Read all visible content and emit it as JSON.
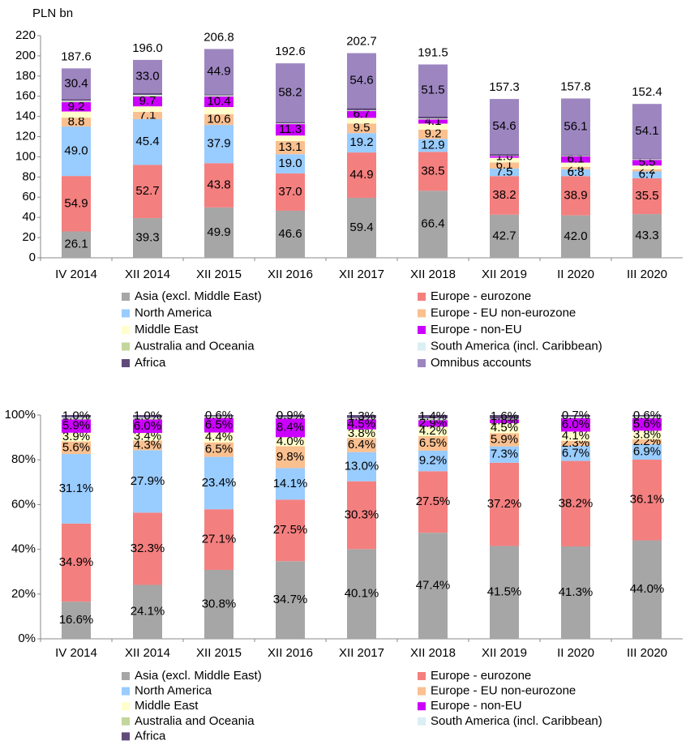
{
  "chart_data": [
    {
      "type": "bar",
      "stacked": true,
      "y_label": "PLN bn",
      "categories": [
        "IV 2014",
        "XII 2014",
        "XII 2015",
        "XII 2016",
        "XII 2017",
        "XII 2018",
        "XII 2019",
        "II 2020",
        "III 2020"
      ],
      "ylim": [
        0,
        220
      ],
      "yticks": [
        0,
        20,
        40,
        60,
        80,
        100,
        120,
        140,
        160,
        180,
        200,
        220
      ],
      "grid": false,
      "totals": [
        187.6,
        196.0,
        206.8,
        192.6,
        202.7,
        191.5,
        157.3,
        157.8,
        152.4
      ],
      "totals_labels": [
        "187.6",
        "196.0",
        "206.8",
        "192.6",
        "202.7",
        "191.5",
        "157.3",
        "157.8",
        "152.4"
      ],
      "series": [
        {
          "name": "Asia (excl. Middle East)",
          "color": "#a6a6a6",
          "labels": true,
          "values": [
            26.1,
            39.3,
            49.9,
            46.6,
            59.4,
            66.4,
            42.7,
            42.0,
            43.3
          ],
          "value_labels": [
            "26.1",
            "39.3",
            "49.9",
            "46.6",
            "59.4",
            "66.4",
            "42.7",
            "42.0",
            "43.3"
          ]
        },
        {
          "name": "Europe - eurozone",
          "color": "#f47f7f",
          "labels": true,
          "values": [
            54.9,
            52.7,
            43.8,
            37.0,
            44.9,
            38.5,
            38.2,
            38.9,
            35.5
          ],
          "value_labels": [
            "54.9",
            "52.7",
            "43.8",
            "37.0",
            "44.9",
            "38.5",
            "38.2",
            "38.9",
            "35.5"
          ]
        },
        {
          "name": "North America",
          "color": "#99ccff",
          "labels": true,
          "values": [
            49.0,
            45.4,
            37.9,
            19.0,
            19.2,
            12.9,
            7.5,
            6.8,
            6.7
          ],
          "value_labels": [
            "49.0",
            "45.4",
            "37.9",
            "19.0",
            "19.2",
            "12.9",
            "7.5",
            "6.8",
            "6.7"
          ]
        },
        {
          "name": "Europe - EU non-eurozone",
          "color": "#fac090",
          "labels": true,
          "values": [
            8.8,
            7.1,
            10.6,
            13.1,
            9.5,
            9.2,
            6.1,
            2.4,
            2.2
          ]
        },
        {
          "name": "Middle East",
          "color": "#ffffcc",
          "labels": false,
          "values": [
            6.1,
            5.5,
            7.1,
            5.4,
            5.6,
            5.9,
            4.6,
            4.2,
            3.7
          ]
        },
        {
          "name": "Europe - non-EU",
          "color": "#cc00ff",
          "labels": true,
          "values": [
            9.2,
            9.7,
            10.4,
            11.3,
            6.7,
            4.1,
            1.6,
            6.1,
            5.5
          ]
        },
        {
          "name": "Australia and Oceania",
          "color": "#c3d69b",
          "labels": false,
          "values": [
            0.8,
            0.9,
            0.6,
            0.4,
            0.5,
            0.5,
            0.2,
            0.3,
            0.4
          ]
        },
        {
          "name": "South America (incl. Caribbean)",
          "color": "#dbeef4",
          "labels": false,
          "values": [
            0.7,
            0.8,
            0.6,
            0.4,
            0.4,
            0.5,
            0.2,
            0.3,
            0.4
          ]
        },
        {
          "name": "Africa",
          "color": "#604a7b",
          "labels": false,
          "values": [
            1.6,
            1.6,
            1.0,
            1.2,
            1.9,
            2.0,
            1.6,
            0.7,
            0.6
          ]
        },
        {
          "name": "Omnibus accounts",
          "color": "#9d86c0",
          "labels": true,
          "values": [
            30.4,
            33.0,
            44.9,
            58.2,
            54.6,
            51.5,
            54.6,
            56.1,
            54.1
          ],
          "value_labels": [
            "30.4",
            "33.0",
            "44.9",
            "58.2",
            "54.6",
            "51.5",
            "54.6",
            "56.1",
            "54.1"
          ]
        }
      ]
    },
    {
      "type": "bar",
      "stacked": true,
      "categories": [
        "IV 2014",
        "XII 2014",
        "XII 2015",
        "XII 2016",
        "XII 2017",
        "XII 2018",
        "XII 2019",
        "II 2020",
        "III 2020"
      ],
      "ylim": [
        0,
        100
      ],
      "grid": false,
      "yticks": [
        {
          "value": 0,
          "label": "0%"
        },
        {
          "value": 20,
          "label": "20%"
        },
        {
          "value": 40,
          "label": "40%"
        },
        {
          "value": 60,
          "label": "60%"
        },
        {
          "value": 80,
          "label": "80%"
        },
        {
          "value": 100,
          "label": "100%"
        }
      ],
      "series": [
        {
          "name": "Asia (excl. Middle East)",
          "color": "#a6a6a6",
          "labels": true,
          "values": [
            16.6,
            24.1,
            30.8,
            34.7,
            40.1,
            47.4,
            41.5,
            41.3,
            44.0
          ],
          "value_labels": [
            "16.6%",
            "24.1%",
            "30.8%",
            "34.7%",
            "40.1%",
            "47.4%",
            "41.5%",
            "41.3%",
            "44.0%"
          ]
        },
        {
          "name": "Europe - eurozone",
          "color": "#f47f7f",
          "labels": true,
          "values": [
            34.9,
            32.3,
            27.1,
            27.5,
            30.3,
            27.5,
            37.2,
            38.2,
            36.1
          ],
          "value_labels": [
            "34.9%",
            "32.3%",
            "27.1%",
            "27.5%",
            "30.3%",
            "27.5%",
            "37.2%",
            "38.2%",
            "36.1%"
          ]
        },
        {
          "name": "North America",
          "color": "#99ccff",
          "labels": true,
          "values": [
            31.1,
            27.9,
            23.4,
            14.1,
            13.0,
            9.2,
            7.3,
            6.7,
            6.9
          ],
          "value_labels": [
            "31.1%",
            "27.9%",
            "23.4%",
            "14.1%",
            "13.0%",
            "9.2%",
            "7.3%",
            "6.7%",
            "6.9%"
          ]
        },
        {
          "name": "Europe - EU non-eurozone",
          "color": "#fac090",
          "labels": true,
          "values": [
            5.6,
            4.3,
            6.5,
            9.8,
            6.4,
            6.5,
            5.9,
            2.3,
            2.2
          ],
          "value_labels": [
            "5.6%",
            "4.3%",
            "6.5%",
            "9.8%",
            "6.4%",
            "6.5%",
            "5.9%",
            "2.3%",
            "2.2%"
          ]
        },
        {
          "name": "Middle East",
          "color": "#ffffcc",
          "labels": true,
          "values": [
            3.9,
            3.4,
            4.4,
            4.0,
            3.8,
            4.2,
            4.5,
            4.1,
            3.8
          ],
          "value_labels": [
            "3.9%",
            "3.4%",
            "4.4%",
            "4.0%",
            "3.8%",
            "4.2%",
            "4.5%",
            "4.1%",
            "3.8%"
          ]
        },
        {
          "name": "Europe - non-EU",
          "color": "#cc00ff",
          "labels": true,
          "values": [
            5.9,
            6.0,
            6.5,
            8.4,
            4.5,
            2.9,
            1.6,
            6.0,
            5.6
          ],
          "value_labels": [
            "5.9%",
            "6.0%",
            "6.5%",
            "8.4%",
            "4.5%",
            "2.9%",
            "1.6%",
            "6.0%",
            "5.6%"
          ]
        },
        {
          "name": "Australia and Oceania",
          "color": "#c3d69b",
          "labels": false,
          "values": [
            0.5,
            0.5,
            0.4,
            0.3,
            0.3,
            0.4,
            0.2,
            0.3,
            0.4
          ]
        },
        {
          "name": "South America (incl. Caribbean)",
          "color": "#dbeef4",
          "labels": false,
          "values": [
            0.5,
            0.5,
            0.3,
            0.3,
            0.3,
            0.5,
            0.2,
            0.4,
            0.4
          ]
        },
        {
          "name": "Africa",
          "color": "#604a7b",
          "labels": true,
          "values": [
            1.0,
            1.0,
            0.6,
            0.9,
            1.3,
            1.4,
            1.6,
            0.7,
            0.6
          ],
          "value_labels": [
            "1.0%",
            "1.0%",
            "0.6%",
            "0.9%",
            "1.3%",
            "1.4%",
            "1.6%",
            "0.7%",
            "0.6%"
          ]
        }
      ]
    }
  ]
}
